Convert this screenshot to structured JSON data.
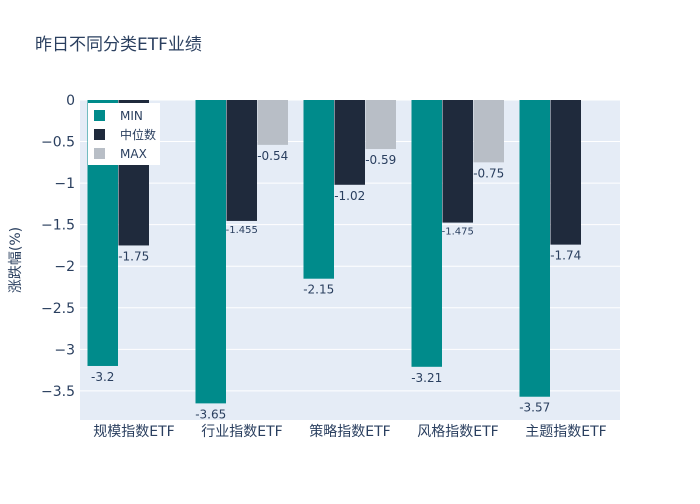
{
  "chart_data": {
    "type": "bar",
    "title": "昨日不同分类ETF业绩",
    "ylabel": "涨跌幅(%)",
    "xlabel": "",
    "ylim": [
      -3.85,
      0
    ],
    "yticks": [
      0,
      -0.5,
      -1,
      -1.5,
      -2,
      -2.5,
      -3,
      -3.5
    ],
    "ytick_labels": [
      "0",
      "−0.5",
      "−1",
      "−1.5",
      "−2",
      "−2.5",
      "−3",
      "−3.5"
    ],
    "categories": [
      "规模指数ETF",
      "行业指数ETF",
      "策略指数ETF",
      "风格指数ETF",
      "主题指数ETF"
    ],
    "legend_position": "top-left",
    "grid": true,
    "series": [
      {
        "name": "MIN",
        "color": "#008B8B",
        "values": [
          -3.2,
          -3.65,
          -2.15,
          -3.21,
          -3.57
        ],
        "labels": [
          "-3.2",
          "-3.65",
          "-2.15",
          "-3.21",
          "-3.57"
        ]
      },
      {
        "name": "中位数",
        "color": "#1F2A3C",
        "values": [
          -1.75,
          -1.455,
          -1.02,
          -1.475,
          -1.74
        ],
        "labels": [
          "-1.75",
          "-1.455",
          "-1.02",
          "-1.475",
          "-1.74"
        ]
      },
      {
        "name": "MAX",
        "color": "#B8BEC6",
        "values": [
          null,
          -0.54,
          -0.59,
          -0.75,
          null
        ],
        "labels": [
          null,
          "-0.54",
          "-0.59",
          "-0.75",
          null
        ]
      }
    ]
  }
}
